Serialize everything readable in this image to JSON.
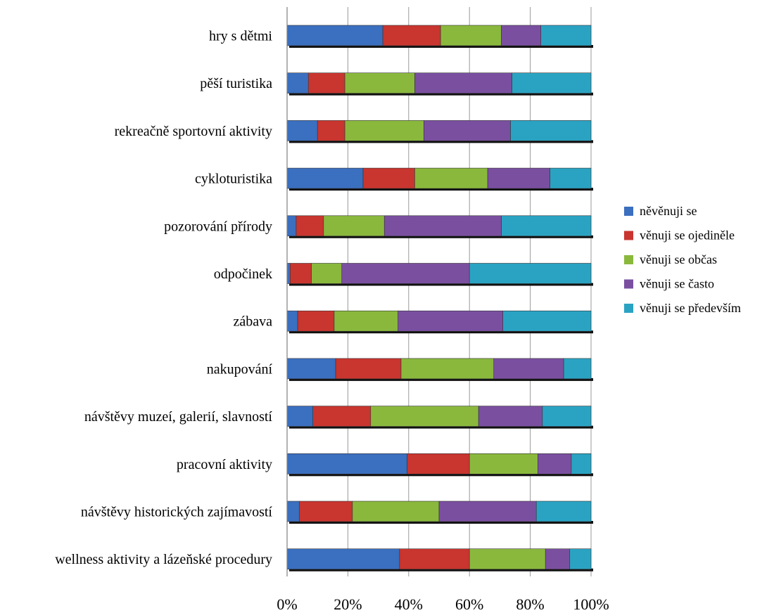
{
  "chart_data": {
    "type": "bar",
    "orientation": "horizontal",
    "stacked": "percent",
    "categories": [
      "hry s dětmi",
      "pěší turistika",
      "rekreačně sportovní aktivity",
      "cykloturistika",
      "pozorování přírody",
      "odpočinek",
      "zábava",
      "nakupování",
      "návštěvy muzeí, galerií, slavností",
      "pracovní aktivity",
      "návštěvy historických zajímavostí",
      "wellness aktivity a lázeňské procedury"
    ],
    "series": [
      {
        "name": "něvěnuji se",
        "color": "#3b6fbf",
        "values": [
          31.5,
          7,
          10,
          25,
          3,
          1,
          3.5,
          16,
          8.5,
          39.5,
          4,
          37
        ]
      },
      {
        "name": "věnuji se ojediněle",
        "color": "#c9352f",
        "values": [
          19,
          12,
          9,
          17,
          9,
          7,
          12,
          21.5,
          19,
          20.5,
          17.5,
          23
        ]
      },
      {
        "name": "věnuji se občas",
        "color": "#8ab83d",
        "values": [
          20,
          23,
          26,
          24,
          20,
          10,
          21,
          30.5,
          35.5,
          22.5,
          28.5,
          25
        ]
      },
      {
        "name": "věnuji se často",
        "color": "#7a4fa0",
        "values": [
          13,
          32,
          28.5,
          20.5,
          38.5,
          42,
          34.5,
          23,
          21,
          11,
          32,
          8
        ]
      },
      {
        "name": "věnuji se především",
        "color": "#2aa3c3",
        "values": [
          16.5,
          26,
          26.5,
          13.5,
          29.5,
          40,
          29,
          9,
          16,
          6.5,
          18,
          7
        ]
      }
    ],
    "x_ticks": [
      "0%",
      "20%",
      "40%",
      "60%",
      "80%",
      "100%"
    ],
    "xlim": [
      0,
      100
    ],
    "grid": "vertical",
    "legend_position": "right"
  }
}
